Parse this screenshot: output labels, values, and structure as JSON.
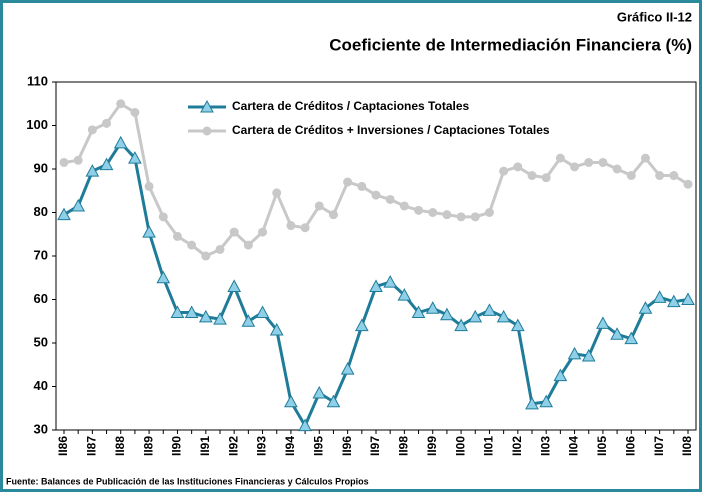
{
  "chart_data": {
    "type": "line",
    "label": "Gráfico II-12",
    "title": "Coeficiente de Intermediación Financiera (%)",
    "source": "Fuente: Balances de Publicación de las Instituciones Financieras y Cálculos Propios",
    "categories": [
      "II86",
      null,
      "II87",
      null,
      "II88",
      null,
      "II89",
      null,
      "II90",
      null,
      "II91",
      null,
      "II92",
      null,
      "II93",
      null,
      "II94",
      null,
      "II95",
      null,
      "II96",
      null,
      "II97",
      null,
      "II98",
      null,
      "II99",
      null,
      "II00",
      null,
      "II01",
      null,
      "II02",
      null,
      "II03",
      null,
      "II04",
      null,
      "II05",
      null,
      "II06",
      null,
      "II07",
      null,
      "II08"
    ],
    "series": [
      {
        "name": "Cartera de Créditos / Captaciones Totales",
        "color": "#1f7c99",
        "marker": "triangle",
        "marker_color": "#8fcfe8",
        "values": [
          79.5,
          81.5,
          89.5,
          91,
          96,
          92.5,
          75.5,
          65,
          57,
          57,
          56,
          55.5,
          63,
          55,
          57,
          53,
          36.5,
          31,
          38.5,
          36.5,
          44,
          54,
          63,
          64,
          61,
          57,
          58,
          56.5,
          54,
          56,
          57.5,
          56,
          54,
          36,
          36.5,
          42.5,
          47.5,
          47,
          54.5,
          52,
          51,
          58,
          60.5,
          59.5,
          60
        ]
      },
      {
        "name": "Cartera de Créditos + Inversiones / Captaciones Totales",
        "color": "#c8c8c8",
        "marker": "circle",
        "marker_color": "#c8c8c8",
        "values": [
          91.5,
          92,
          99,
          100.5,
          105,
          103,
          86,
          79,
          74.5,
          72.5,
          70,
          71.5,
          75.5,
          72.5,
          75.5,
          84.5,
          77,
          76.5,
          81.5,
          79.5,
          87,
          86,
          84,
          83,
          81.5,
          80.5,
          80,
          79.5,
          79,
          79,
          80,
          89.5,
          90.5,
          88.5,
          88,
          92.5,
          90.5,
          91.5,
          91.5,
          90,
          88.5,
          92.5,
          88.5,
          88.5,
          86.5
        ]
      }
    ],
    "ylim": [
      30,
      110
    ],
    "yticks": [
      30,
      40,
      50,
      60,
      70,
      80,
      90,
      100,
      110
    ],
    "grid": false,
    "legend": "top-left"
  }
}
